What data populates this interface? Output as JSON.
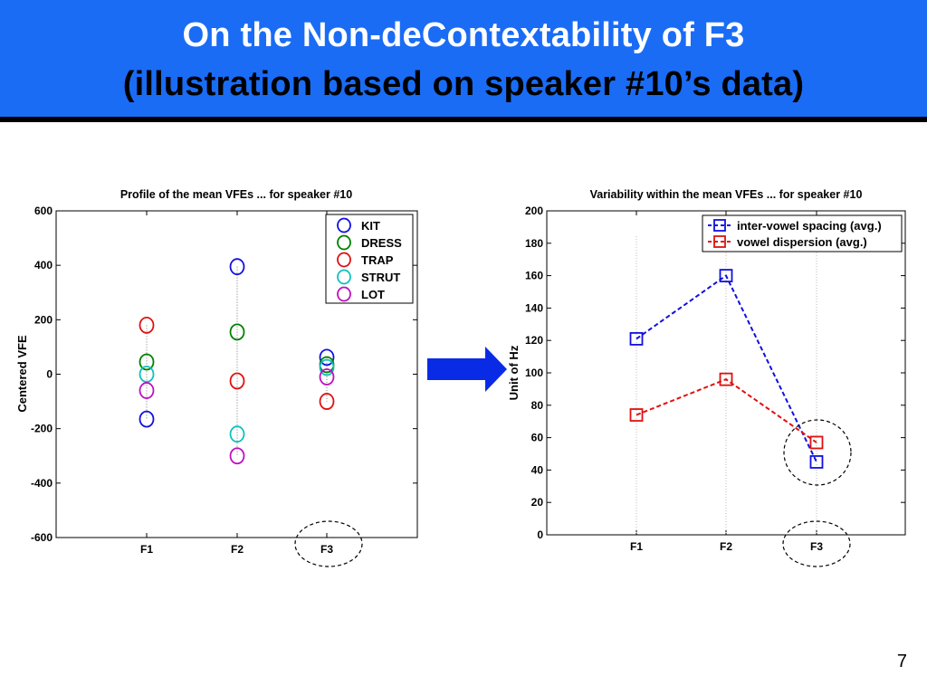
{
  "slide": {
    "title_line1": "On the Non-deContextability of F3",
    "title_line2": "(illustration based on speaker #10’s data)",
    "page_number": "7",
    "colors": {
      "banner": "#1a6cf5",
      "arrow": "#0a2be6"
    }
  },
  "chart_data": [
    {
      "type": "scatter",
      "title": "Profile of the mean VFEs ... for speaker #10",
      "xlabel": "",
      "ylabel": "Centered VFE",
      "categories": [
        "F1",
        "F2",
        "F3"
      ],
      "ylim": [
        -600,
        600
      ],
      "yticks": [
        600,
        400,
        200,
        0,
        -200,
        -400,
        -600
      ],
      "legend_position": "top-right",
      "marker": "circle",
      "series": [
        {
          "name": "KIT",
          "color": "#1010e0",
          "values": [
            -165,
            395,
            62
          ]
        },
        {
          "name": "DRESS",
          "color": "#008000",
          "values": [
            45,
            155,
            35
          ]
        },
        {
          "name": "TRAP",
          "color": "#e01010",
          "values": [
            180,
            -25,
            -100
          ]
        },
        {
          "name": "STRUT",
          "color": "#10c0c0",
          "values": [
            0,
            -220,
            25
          ]
        },
        {
          "name": "LOT",
          "color": "#c010c0",
          "values": [
            -60,
            -300,
            -10
          ]
        }
      ],
      "annotation": "dashed ellipse around F3"
    },
    {
      "type": "line",
      "title": "Variability within the mean VFEs ... for speaker #10",
      "xlabel": "",
      "ylabel": "Unit of Hz",
      "categories": [
        "F1",
        "F2",
        "F3"
      ],
      "ylim": [
        0,
        200
      ],
      "yticks": [
        200,
        180,
        160,
        140,
        120,
        100,
        80,
        60,
        40,
        20,
        0
      ],
      "legend_position": "top-right",
      "marker": "square",
      "line_style": "dashed",
      "series": [
        {
          "name": "inter-vowel spacing (avg.)",
          "color": "#1010e0",
          "values": [
            121,
            160,
            45
          ]
        },
        {
          "name": "vowel dispersion (avg.)",
          "color": "#e01010",
          "values": [
            74,
            96,
            57
          ]
        }
      ],
      "annotation": "dashed ellipses around F3"
    }
  ]
}
